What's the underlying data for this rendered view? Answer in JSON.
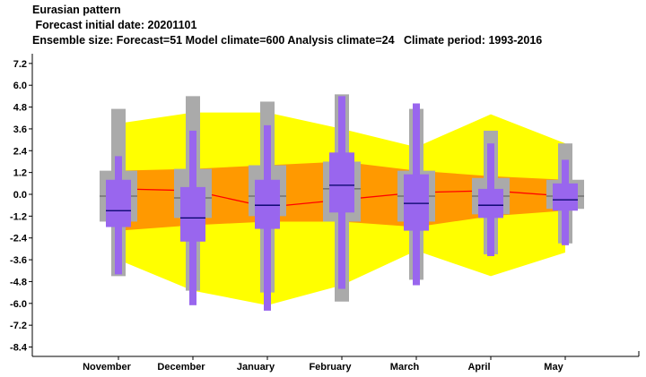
{
  "header": {
    "line1": "Eurasian pattern",
    "line2": " Forecast initial date: 20201101",
    "line3": "Ensemble size: Forecast=51 Model climate=600 Analysis climate=24   Climate period: 1993-2016"
  },
  "chart_data": {
    "type": "box",
    "categories": [
      "November",
      "December",
      "January",
      "February",
      "March",
      "April",
      "May"
    ],
    "ylim": [
      -8.4,
      8.4
    ],
    "yticks": [
      7.2,
      6.0,
      4.8,
      3.6,
      2.4,
      1.2,
      0.0,
      -1.2,
      -2.4,
      -3.6,
      -4.8,
      -6.0,
      -7.2,
      -8.4
    ],
    "ytick_labels": [
      "7.2",
      "6.0",
      "4.8",
      "3.6",
      "2.4",
      "1.2",
      "0.0",
      "-1.2",
      "-2.4",
      "-3.6",
      "-4.8",
      "-6.0",
      "-7.2",
      "-8.4"
    ],
    "grid": false,
    "colors": {
      "outer_band": "#ffff00",
      "inner_band": "#ff9900",
      "median_line": "#ff0000",
      "model_climate_box": "#aaaaaa",
      "forecast_box": "#9966ee",
      "median_tick": "#000066"
    },
    "outer_band": {
      "upper": [
        3.9,
        4.5,
        4.5,
        3.6,
        2.6,
        4.4,
        2.8
      ],
      "lower": [
        -3.6,
        -5.3,
        -6.1,
        -5.0,
        -3.1,
        -4.5,
        -3.2
      ]
    },
    "inner_band": {
      "upper": [
        1.3,
        1.4,
        1.6,
        1.8,
        1.3,
        1.0,
        0.8
      ],
      "lower": [
        -2.0,
        -1.7,
        -1.5,
        -1.5,
        -1.8,
        -1.2,
        -0.9
      ]
    },
    "model_climate": [
      {
        "min": -4.5,
        "q1": -1.5,
        "median": -0.1,
        "q3": 1.3,
        "max": 4.7
      },
      {
        "min": -5.3,
        "q1": -1.3,
        "median": -0.2,
        "q3": 1.4,
        "max": 5.4
      },
      {
        "min": -5.4,
        "q1": -1.2,
        "median": -0.1,
        "q3": 1.6,
        "max": 5.1
      },
      {
        "min": -5.9,
        "q1": -1.5,
        "median": 0.3,
        "q3": 1.8,
        "max": 5.5
      },
      {
        "min": -4.7,
        "q1": -1.5,
        "median": -0.1,
        "q3": 1.3,
        "max": 4.7
      },
      {
        "min": -3.3,
        "q1": -1.1,
        "median": -0.1,
        "q3": 0.9,
        "max": 3.5
      },
      {
        "min": -2.7,
        "q1": -0.8,
        "median": -0.1,
        "q3": 0.8,
        "max": 2.8
      }
    ],
    "forecast": [
      {
        "min": -4.4,
        "q1": -1.8,
        "median": -0.9,
        "q3": 0.8,
        "max": 2.1
      },
      {
        "min": -6.1,
        "q1": -2.6,
        "median": -1.3,
        "q3": 0.4,
        "max": 3.5
      },
      {
        "min": -6.4,
        "q1": -1.9,
        "median": -0.6,
        "q3": 0.8,
        "max": 3.8
      },
      {
        "min": -5.2,
        "q1": -1.0,
        "median": 0.5,
        "q3": 2.3,
        "max": 5.4
      },
      {
        "min": -5.0,
        "q1": -2.0,
        "median": -0.5,
        "q3": 1.1,
        "max": 5.0
      },
      {
        "min": -3.4,
        "q1": -1.3,
        "median": -0.6,
        "q3": 0.3,
        "max": 2.8
      },
      {
        "min": -2.8,
        "q1": -0.9,
        "median": -0.3,
        "q3": 0.6,
        "max": 1.9
      }
    ],
    "median_line": [
      0.3,
      0.2,
      -0.7,
      -0.3,
      0.1,
      0.2,
      -0.1
    ]
  }
}
